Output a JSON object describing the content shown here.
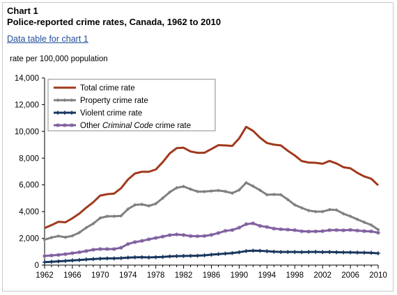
{
  "header": {
    "chart_number": "Chart 1",
    "title": "Police-reported crime rates, Canada, 1962 to 2010",
    "data_table_link": "Data table for chart 1"
  },
  "chart_data": {
    "type": "line",
    "title": "Police-reported crime rates, Canada, 1962 to 2010",
    "ylabel": "rate per 100,000 population",
    "xlabel": "",
    "xlim": [
      1962,
      2010
    ],
    "ylim": [
      0,
      14000
    ],
    "yticks": [
      0,
      2000,
      4000,
      6000,
      8000,
      10000,
      12000,
      14000
    ],
    "ytick_labels": [
      "0",
      "2,000",
      "4,000",
      "6,000",
      "8,000",
      "10,000",
      "12,000",
      "14,000"
    ],
    "xticks": [
      1962,
      1966,
      1970,
      1974,
      1978,
      1982,
      1986,
      1990,
      1994,
      1998,
      2002,
      2006,
      2010
    ],
    "xtick_labels": [
      "1962",
      "1966",
      "1970",
      "1974",
      "1978",
      "1982",
      "1986",
      "1990",
      "1994",
      "1998",
      "2002",
      "2006",
      "2010"
    ],
    "grid": false,
    "legend_position": "top-left",
    "x": [
      1962,
      1963,
      1964,
      1965,
      1966,
      1967,
      1968,
      1969,
      1970,
      1971,
      1972,
      1973,
      1974,
      1975,
      1976,
      1977,
      1978,
      1979,
      1980,
      1981,
      1982,
      1983,
      1984,
      1985,
      1986,
      1987,
      1988,
      1989,
      1990,
      1991,
      1992,
      1993,
      1994,
      1995,
      1996,
      1997,
      1998,
      1999,
      2000,
      2001,
      2002,
      2003,
      2004,
      2005,
      2006,
      2007,
      2008,
      2009,
      2010
    ],
    "series": [
      {
        "name": "Total crime rate",
        "color": "#a0391c",
        "marker": "none",
        "values": [
          2770,
          2990,
          3240,
          3200,
          3500,
          3850,
          4300,
          4700,
          5200,
          5300,
          5350,
          5750,
          6400,
          6850,
          6980,
          6980,
          7150,
          7700,
          8350,
          8750,
          8780,
          8500,
          8400,
          8400,
          8680,
          8970,
          8950,
          8910,
          9480,
          10340,
          10040,
          9530,
          9130,
          9010,
          8950,
          8550,
          8200,
          7780,
          7670,
          7650,
          7580,
          7790,
          7600,
          7320,
          7240,
          6900,
          6630,
          6460,
          5970
        ]
      },
      {
        "name": "Property crime rate",
        "color": "#808080",
        "marker": "diamond",
        "values": [
          1900,
          2060,
          2170,
          2080,
          2190,
          2430,
          2800,
          3100,
          3520,
          3650,
          3650,
          3680,
          4190,
          4500,
          4540,
          4430,
          4590,
          5010,
          5450,
          5780,
          5880,
          5680,
          5500,
          5500,
          5540,
          5580,
          5510,
          5380,
          5620,
          6160,
          5900,
          5600,
          5260,
          5280,
          5260,
          4900,
          4500,
          4280,
          4080,
          4000,
          4000,
          4150,
          4120,
          3840,
          3650,
          3420,
          3200,
          3000,
          2650
        ]
      },
      {
        "name": "Violent crime rate",
        "color": "#17365d",
        "marker": "plus",
        "values": [
          220,
          250,
          280,
          310,
          350,
          380,
          420,
          450,
          480,
          500,
          500,
          520,
          560,
          580,
          590,
          570,
          590,
          610,
          650,
          670,
          680,
          690,
          700,
          730,
          780,
          820,
          860,
          900,
          960,
          1050,
          1080,
          1070,
          1040,
          1000,
          980,
          980,
          980,
          970,
          980,
          990,
          970,
          980,
          960,
          950,
          950,
          940,
          930,
          920,
          880
        ]
      },
      {
        "name": "Other Criminal Code crime rate",
        "color": "#8060a0",
        "marker": "star",
        "values": [
          680,
          720,
          760,
          820,
          890,
          960,
          1050,
          1150,
          1200,
          1200,
          1200,
          1300,
          1580,
          1720,
          1810,
          1930,
          2030,
          2130,
          2240,
          2290,
          2250,
          2170,
          2160,
          2180,
          2260,
          2400,
          2560,
          2620,
          2800,
          3060,
          3120,
          2930,
          2850,
          2730,
          2680,
          2650,
          2610,
          2530,
          2510,
          2520,
          2540,
          2610,
          2620,
          2600,
          2630,
          2580,
          2540,
          2520,
          2420
        ]
      }
    ]
  },
  "legend": {
    "items": [
      {
        "label": "Total crime rate"
      },
      {
        "label": "Property crime rate"
      },
      {
        "label": "Violent crime rate"
      },
      {
        "label_prefix": "Other",
        "label_italic": "Criminal Code",
        "label_suffix": "crime rate"
      }
    ]
  }
}
